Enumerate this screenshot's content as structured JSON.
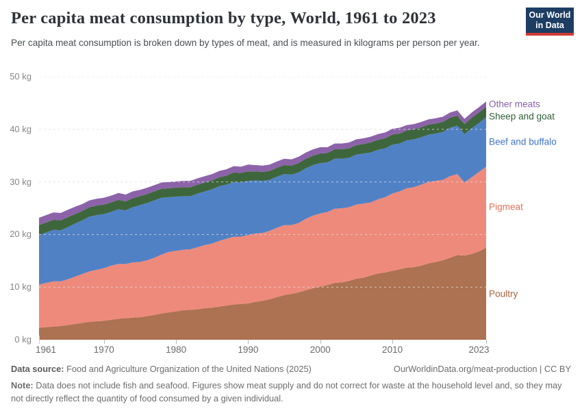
{
  "header": {
    "title": "Per capita meat consumption by type, World, 1961 to 2023",
    "subtitle": "Per capita meat consumption is broken down by types of meat, and is measured in kilograms per person per year.",
    "logo_line1": "Our World",
    "logo_line2": "in Data"
  },
  "chart_data": {
    "type": "area",
    "stacked": true,
    "title": "Per capita meat consumption by type, World, 1961 to 2023",
    "ylabel": "kilograms per person per year",
    "ylim": [
      0,
      50
    ],
    "grid": "dashed",
    "legend_position": "right",
    "yticks": [
      {
        "value": 0,
        "label": "0 kg"
      },
      {
        "value": 10,
        "label": "10 kg"
      },
      {
        "value": 20,
        "label": "20 kg"
      },
      {
        "value": 30,
        "label": "30 kg"
      },
      {
        "value": 40,
        "label": "40 kg"
      },
      {
        "value": 50,
        "label": "50 kg"
      }
    ],
    "xticks": [
      1961,
      1970,
      1980,
      1990,
      2000,
      2010,
      2023
    ],
    "years": [
      1961,
      1962,
      1963,
      1964,
      1965,
      1966,
      1967,
      1968,
      1969,
      1970,
      1971,
      1972,
      1973,
      1974,
      1975,
      1976,
      1977,
      1978,
      1979,
      1980,
      1981,
      1982,
      1983,
      1984,
      1985,
      1986,
      1987,
      1988,
      1989,
      1990,
      1991,
      1992,
      1993,
      1994,
      1995,
      1996,
      1997,
      1998,
      1999,
      2000,
      2001,
      2002,
      2003,
      2004,
      2005,
      2006,
      2007,
      2008,
      2009,
      2010,
      2011,
      2012,
      2013,
      2014,
      2015,
      2016,
      2017,
      2018,
      2019,
      2020,
      2021,
      2022,
      2023
    ],
    "series": [
      {
        "name": "Poultry",
        "color": "#AC7251",
        "label_color": "#A8633E",
        "values": [
          2.3,
          2.4,
          2.5,
          2.6,
          2.8,
          3.0,
          3.2,
          3.4,
          3.5,
          3.6,
          3.8,
          4.0,
          4.1,
          4.2,
          4.3,
          4.5,
          4.7,
          5.0,
          5.2,
          5.4,
          5.6,
          5.7,
          5.8,
          6.0,
          6.1,
          6.3,
          6.5,
          6.7,
          6.8,
          6.9,
          7.2,
          7.4,
          7.7,
          8.1,
          8.5,
          8.7,
          9.0,
          9.4,
          9.8,
          10.1,
          10.4,
          10.8,
          10.9,
          11.2,
          11.6,
          11.8,
          12.2,
          12.6,
          12.8,
          13.1,
          13.4,
          13.7,
          13.8,
          14.1,
          14.5,
          14.8,
          15.1,
          15.6,
          16.1,
          16.0,
          16.3,
          16.8,
          17.5
        ]
      },
      {
        "name": "Pigmeat",
        "color": "#EE8A7C",
        "label_color": "#E2705B",
        "values": [
          8.2,
          8.4,
          8.6,
          8.5,
          8.7,
          9.0,
          9.3,
          9.6,
          9.8,
          10.0,
          10.3,
          10.4,
          10.3,
          10.5,
          10.5,
          10.6,
          10.9,
          11.2,
          11.5,
          11.5,
          11.5,
          11.5,
          11.8,
          12.0,
          12.2,
          12.5,
          12.7,
          12.9,
          12.8,
          13.0,
          13.0,
          12.9,
          13.0,
          13.2,
          13.3,
          13.1,
          13.2,
          13.6,
          13.8,
          13.9,
          13.9,
          14.1,
          14.1,
          14.0,
          14.1,
          14.1,
          13.9,
          14.1,
          14.3,
          14.7,
          14.8,
          15.1,
          15.2,
          15.4,
          15.5,
          15.4,
          15.3,
          15.5,
          15.4,
          13.9,
          14.6,
          15.1,
          15.4
        ]
      },
      {
        "name": "Beef and buffalo",
        "color": "#5181C5",
        "label_color": "#3E74C9",
        "values": [
          9.4,
          9.6,
          9.8,
          9.7,
          9.9,
          10.1,
          10.2,
          10.4,
          10.4,
          10.3,
          10.2,
          10.4,
          10.2,
          10.5,
          10.8,
          10.9,
          10.9,
          10.8,
          10.4,
          10.3,
          10.2,
          10.1,
          10.2,
          10.2,
          10.3,
          10.4,
          10.3,
          10.4,
          10.3,
          10.3,
          10.1,
          9.9,
          9.7,
          9.7,
          9.7,
          9.6,
          9.6,
          9.6,
          9.6,
          9.6,
          9.4,
          9.5,
          9.4,
          9.4,
          9.5,
          9.5,
          9.5,
          9.4,
          9.3,
          9.3,
          9.1,
          9.1,
          9.1,
          9.0,
          9.0,
          9.0,
          9.1,
          9.2,
          9.2,
          9.2,
          9.3,
          9.3,
          9.4
        ]
      },
      {
        "name": "Sheep and goat",
        "color": "#3E663C",
        "label_color": "#2F5E37",
        "values": [
          1.9,
          1.9,
          1.9,
          1.9,
          1.9,
          1.8,
          1.8,
          1.8,
          1.8,
          1.8,
          1.8,
          1.8,
          1.7,
          1.7,
          1.7,
          1.7,
          1.7,
          1.7,
          1.7,
          1.7,
          1.7,
          1.7,
          1.7,
          1.7,
          1.7,
          1.7,
          1.7,
          1.8,
          1.8,
          1.8,
          1.7,
          1.7,
          1.7,
          1.7,
          1.7,
          1.7,
          1.8,
          1.8,
          1.8,
          1.8,
          1.8,
          1.8,
          1.8,
          1.8,
          1.8,
          1.8,
          1.9,
          1.9,
          1.9,
          1.9,
          1.9,
          1.9,
          1.9,
          1.9,
          1.9,
          1.9,
          1.9,
          1.9,
          1.9,
          1.9,
          2.0,
          2.0,
          2.0
        ]
      },
      {
        "name": "Other meats",
        "color": "#8C63A9",
        "label_color": "#8A5FAD",
        "values": [
          1.4,
          1.4,
          1.4,
          1.4,
          1.4,
          1.4,
          1.3,
          1.3,
          1.3,
          1.3,
          1.3,
          1.3,
          1.3,
          1.3,
          1.2,
          1.2,
          1.2,
          1.2,
          1.2,
          1.2,
          1.2,
          1.2,
          1.2,
          1.2,
          1.2,
          1.2,
          1.2,
          1.2,
          1.2,
          1.3,
          1.2,
          1.2,
          1.2,
          1.2,
          1.2,
          1.2,
          1.2,
          1.2,
          1.2,
          1.2,
          1.1,
          1.1,
          1.1,
          1.1,
          1.1,
          1.1,
          1.1,
          1.1,
          1.1,
          1.1,
          1.1,
          1.0,
          1.0,
          1.0,
          1.0,
          1.0,
          1.0,
          1.0,
          1.0,
          1.0,
          1.0,
          1.0,
          1.0
        ]
      }
    ]
  },
  "footer": {
    "datasource_label": "Data source:",
    "datasource_text": " Food and Agriculture Organization of the United Nations (2025)",
    "link_text": "OurWorldinData.org/meat-production | CC BY",
    "note_label": "Note:",
    "note_text": " Data does not include fish and seafood. Figures show meat supply and do not correct for waste at the household level and, so they may not directly reflect the quantity of food consumed by a given individual."
  },
  "colors": {
    "grid": "#dddddd",
    "logo_background": "#1D3D63",
    "logo_bar": "#D13B32",
    "title_text": "#2F3338",
    "subtitle_text": "#494E52",
    "axis_text": "#696969",
    "footer_text": "#6C6C6C"
  }
}
